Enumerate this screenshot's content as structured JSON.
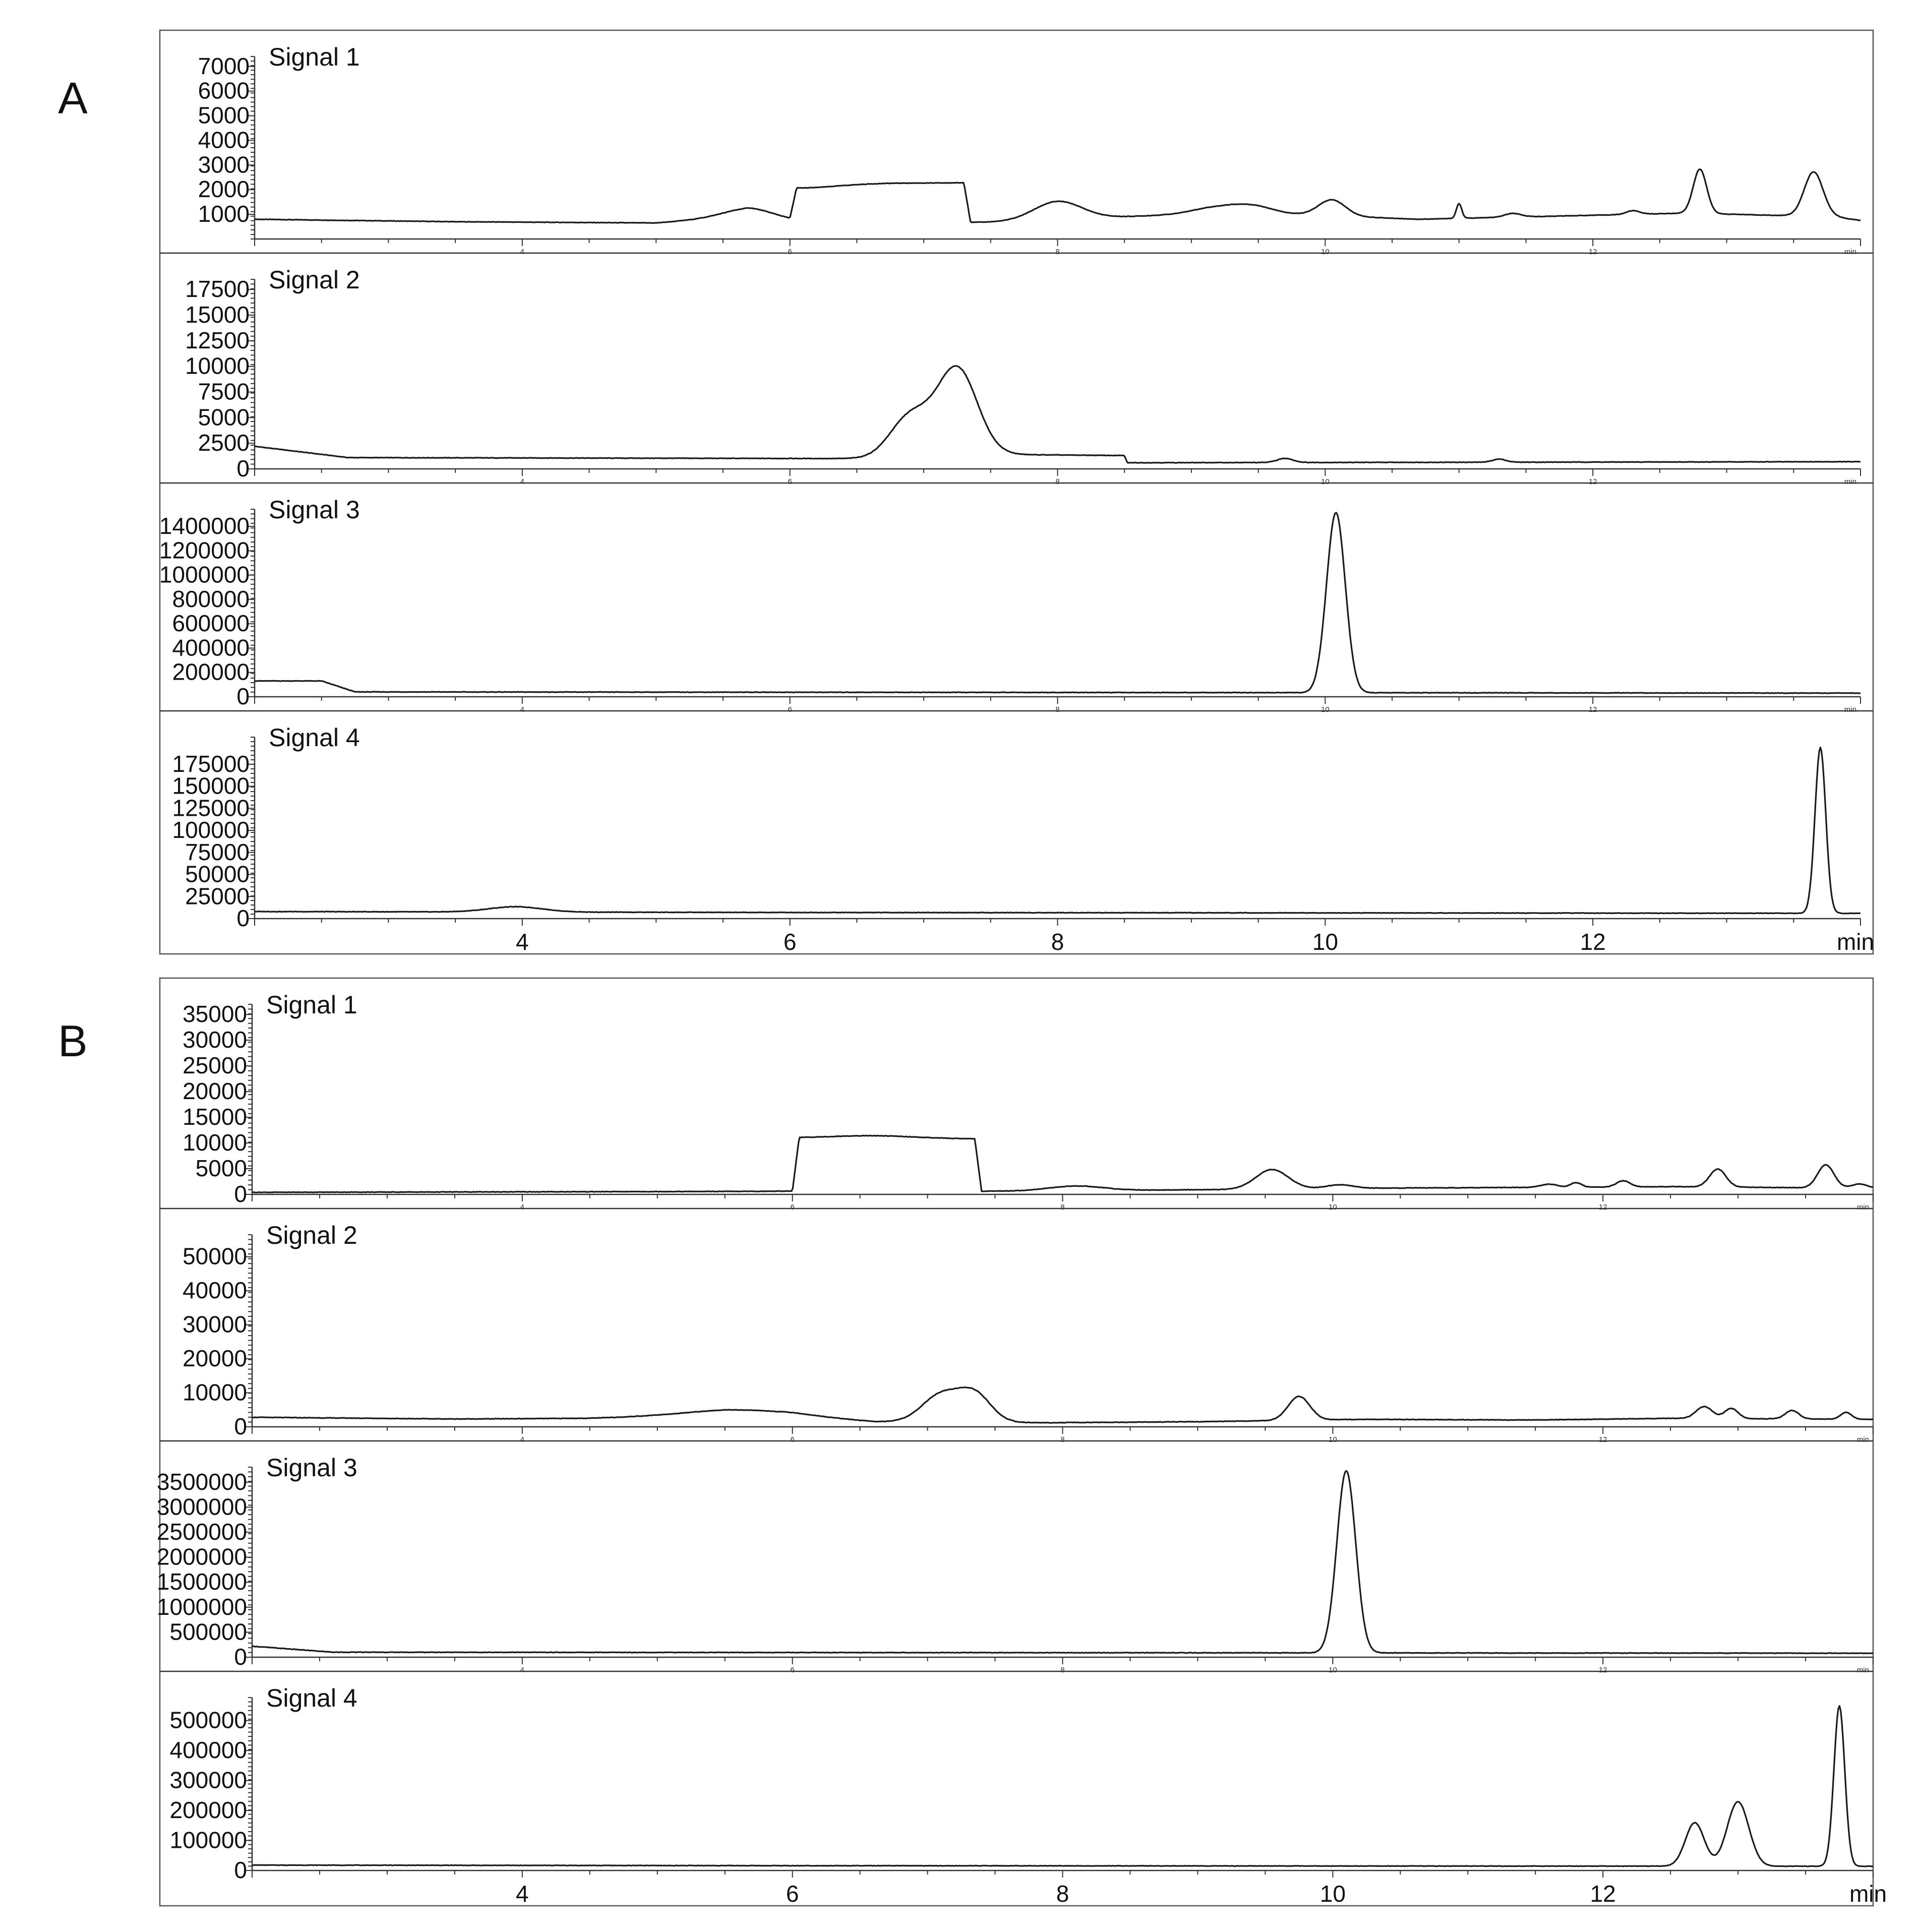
{
  "chart_data": [
    {
      "type": "line",
      "panel": "A",
      "x_unit": "min",
      "xlim": [
        2.0,
        14.0
      ],
      "xticks": [
        4,
        6,
        8,
        10,
        12
      ],
      "signals": [
        {
          "name": "Signal 1",
          "ylim": [
            0,
            7200
          ],
          "yticks": [
            1000,
            2000,
            3000,
            4000,
            5000,
            6000,
            7000
          ],
          "ytick_labels": [
            "1000",
            "2000",
            "3000",
            "4000",
            "5000",
            "6000",
            "7000"
          ],
          "baseline": 750,
          "breakpoints": [
            [
              2.0,
              800
            ],
            [
              3.5,
              700
            ],
            [
              5.0,
              650
            ],
            [
              5.7,
              950
            ],
            [
              6.0,
              700
            ],
            [
              6.05,
              1950
            ],
            [
              7.3,
              2250
            ],
            [
              7.35,
              650
            ],
            [
              7.7,
              700
            ],
            [
              9.3,
              1100
            ],
            [
              10.7,
              800
            ],
            [
              12.7,
              1050
            ],
            [
              13.8,
              900
            ],
            [
              14.0,
              750
            ]
          ],
          "peaks": [
            [
              5.7,
              300,
              0.2
            ],
            [
              6.6,
              150,
              0.4
            ],
            [
              8.0,
              750,
              0.18
            ],
            [
              9.15,
              200,
              0.15
            ],
            [
              9.45,
              300,
              0.15
            ],
            [
              10.05,
              650,
              0.1
            ],
            [
              11.0,
              600,
              0.02
            ],
            [
              11.4,
              150,
              0.06
            ],
            [
              12.3,
              150,
              0.05
            ],
            [
              12.8,
              1800,
              0.05
            ],
            [
              13.65,
              1800,
              0.07
            ]
          ]
        },
        {
          "name": "Signal 2",
          "ylim": [
            0,
            18000
          ],
          "yticks": [
            0,
            2500,
            5000,
            7500,
            10000,
            12500,
            15000,
            17500
          ],
          "ytick_labels": [
            "0",
            "2500",
            "5000",
            "7500",
            "10000",
            "12500",
            "15000",
            "17500"
          ],
          "baseline": 900,
          "breakpoints": [
            [
              2.0,
              2200
            ],
            [
              2.7,
              1100
            ],
            [
              6.6,
              1000
            ],
            [
              7.6,
              1400
            ],
            [
              8.5,
              1300
            ],
            [
              8.52,
              600
            ],
            [
              14.0,
              700
            ]
          ],
          "peaks": [
            [
              6.9,
              4000,
              0.15
            ],
            [
              7.25,
              8500,
              0.15
            ],
            [
              9.7,
              400,
              0.06
            ],
            [
              11.3,
              300,
              0.05
            ]
          ]
        },
        {
          "name": "Signal 3",
          "ylim": [
            0,
            1500000
          ],
          "yticks": [
            0,
            200000,
            400000,
            600000,
            800000,
            1000000,
            1200000,
            1400000
          ],
          "ytick_labels": [
            "0",
            "200000",
            "400000",
            "600000",
            "800000",
            "1000000",
            "1200000",
            "1400000"
          ],
          "baseline": 30000,
          "breakpoints": [
            [
              2.0,
              130000
            ],
            [
              2.5,
              130000
            ],
            [
              2.75,
              40000
            ],
            [
              14.0,
              30000
            ]
          ],
          "peaks": [
            [
              10.08,
              1480000,
              0.07
            ]
          ]
        },
        {
          "name": "Signal 4",
          "ylim": [
            0,
            200000
          ],
          "yticks": [
            0,
            25000,
            50000,
            75000,
            100000,
            125000,
            150000,
            175000
          ],
          "ytick_labels": [
            "0",
            "25000",
            "50000",
            "75000",
            "100000",
            "125000",
            "150000",
            "175000"
          ],
          "baseline": 6000,
          "breakpoints": [
            [
              2.0,
              8000
            ],
            [
              5.6,
              7000
            ],
            [
              14.0,
              6000
            ]
          ],
          "peaks": [
            [
              3.95,
              6000,
              0.2
            ],
            [
              13.7,
              188000,
              0.04
            ]
          ]
        }
      ]
    },
    {
      "type": "line",
      "panel": "B",
      "x_unit": "min",
      "xlim": [
        2.0,
        14.0
      ],
      "xticks": [
        4,
        6,
        8,
        10,
        12
      ],
      "signals": [
        {
          "name": "Signal 1",
          "ylim": [
            0,
            36000
          ],
          "yticks": [
            0,
            5000,
            10000,
            15000,
            20000,
            25000,
            30000,
            35000
          ],
          "ytick_labels": [
            "0",
            "5000",
            "10000",
            "15000",
            "20000",
            "25000",
            "30000",
            "35000"
          ],
          "baseline": 500,
          "breakpoints": [
            [
              2.0,
              400
            ],
            [
              6.0,
              600
            ],
            [
              6.05,
              11000
            ],
            [
              7.35,
              10800
            ],
            [
              7.4,
              600
            ],
            [
              9.0,
              900
            ],
            [
              10.2,
              1200
            ],
            [
              12.5,
              1500
            ],
            [
              14.0,
              1200
            ]
          ],
          "peaks": [
            [
              6.6,
              500,
              0.3
            ],
            [
              8.1,
              900,
              0.2
            ],
            [
              9.55,
              3800,
              0.12
            ],
            [
              10.05,
              700,
              0.1
            ],
            [
              11.6,
              600,
              0.06
            ],
            [
              11.8,
              900,
              0.04
            ],
            [
              12.15,
              1200,
              0.05
            ],
            [
              12.85,
              3500,
              0.06
            ],
            [
              13.65,
              4500,
              0.06
            ],
            [
              13.9,
              800,
              0.06
            ]
          ]
        },
        {
          "name": "Signal 2",
          "ylim": [
            0,
            55000
          ],
          "yticks": [
            0,
            10000,
            20000,
            30000,
            40000,
            50000
          ],
          "ytick_labels": [
            "0",
            "10000",
            "20000",
            "30000",
            "40000",
            "50000"
          ],
          "baseline": 2000,
          "breakpoints": [
            [
              2.0,
              2800
            ],
            [
              3.5,
              2300
            ],
            [
              4.5,
              2500
            ],
            [
              5.5,
              3500
            ],
            [
              6.0,
              3300
            ],
            [
              6.6,
              1500
            ],
            [
              7.9,
              1200
            ],
            [
              9.0,
              1500
            ],
            [
              10.2,
              2200
            ],
            [
              11.5,
              2000
            ],
            [
              12.5,
              2500
            ],
            [
              14.0,
              2200
            ]
          ],
          "peaks": [
            [
              5.6,
              1500,
              0.4
            ],
            [
              7.1,
              8000,
              0.14
            ],
            [
              7.35,
              8000,
              0.12
            ],
            [
              9.75,
              7000,
              0.08
            ],
            [
              12.75,
              3500,
              0.06
            ],
            [
              12.95,
              3000,
              0.05
            ],
            [
              13.4,
              2500,
              0.05
            ],
            [
              13.8,
              2000,
              0.04
            ]
          ]
        },
        {
          "name": "Signal 3",
          "ylim": [
            0,
            3700000
          ],
          "yticks": [
            0,
            500000,
            1000000,
            1500000,
            2000000,
            2500000,
            3000000,
            3500000
          ],
          "ytick_labels": [
            "0",
            "500000",
            "1000000",
            "1500000",
            "2000000",
            "2500000",
            "3000000",
            "3500000"
          ],
          "baseline": 80000,
          "breakpoints": [
            [
              2.0,
              220000
            ],
            [
              2.6,
              100000
            ],
            [
              14.0,
              80000
            ]
          ],
          "peaks": [
            [
              10.1,
              3640000,
              0.07
            ]
          ]
        },
        {
          "name": "Signal 4",
          "ylim": [
            0,
            560000
          ],
          "yticks": [
            0,
            100000,
            200000,
            300000,
            400000,
            500000
          ],
          "ytick_labels": [
            "0",
            "100000",
            "200000",
            "300000",
            "400000",
            "500000"
          ],
          "baseline": 14000,
          "breakpoints": [
            [
              2.0,
              18000
            ],
            [
              6.0,
              16000
            ],
            [
              14.0,
              14000
            ]
          ],
          "peaks": [
            [
              12.68,
              145000,
              0.07
            ],
            [
              13.0,
              215000,
              0.08
            ],
            [
              13.75,
              535000,
              0.04
            ]
          ]
        }
      ]
    }
  ]
}
